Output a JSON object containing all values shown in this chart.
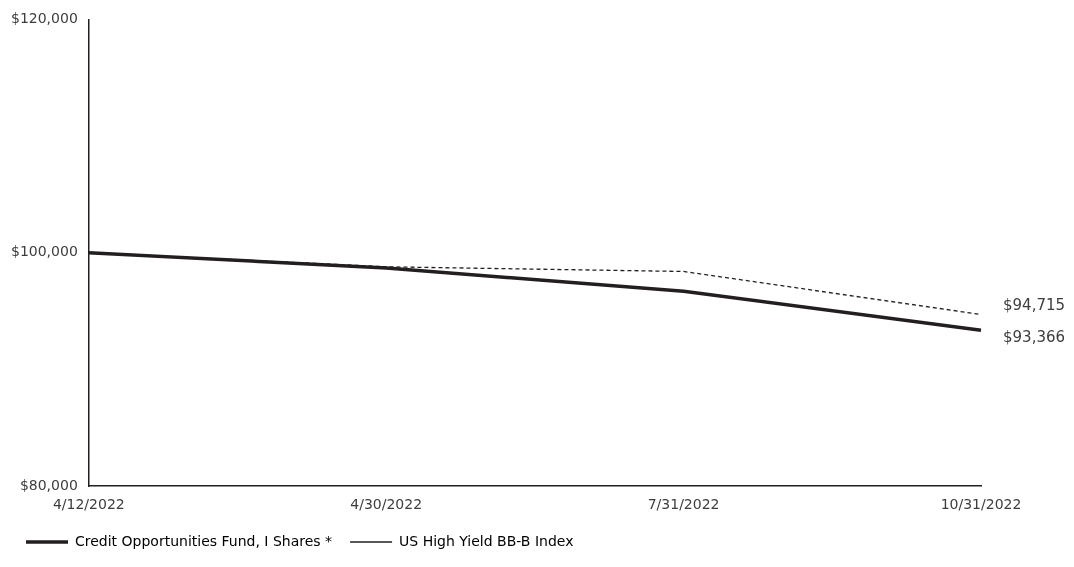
{
  "chart_data": {
    "type": "line",
    "categories": [
      "4/12/2022",
      "4/30/2022",
      "7/31/2022",
      "10/31/2022"
    ],
    "series": [
      {
        "name": "Credit Opportunities Fund, I Shares *",
        "color": "#231f20",
        "line_style": "solid",
        "values": [
          100000,
          98700,
          96700,
          93366
        ],
        "value_labels": [
          null,
          null,
          null,
          "$93,366"
        ]
      },
      {
        "name": "US High Yield BB-B Index",
        "color": "#231f20",
        "line_style": "dashed",
        "values": [
          100000,
          98800,
          98400,
          94715
        ],
        "value_labels": [
          null,
          null,
          null,
          "$94,715"
        ]
      }
    ],
    "ylim": [
      80000,
      120000
    ],
    "yticks": [
      {
        "value": 80000,
        "label": "$80,000"
      },
      {
        "value": 100000,
        "label": "$100,000"
      },
      {
        "value": 120000,
        "label": "$120,000"
      }
    ],
    "grid": false,
    "legend": "bottom left",
    "marker": "none"
  }
}
